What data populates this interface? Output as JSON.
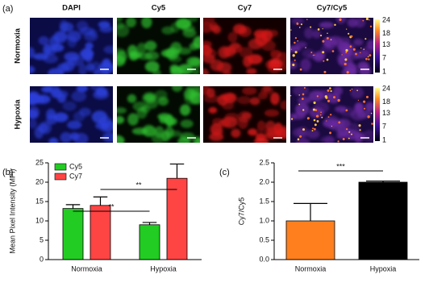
{
  "panel_labels": [
    "(a)",
    "(b)",
    "(c)"
  ],
  "imaging": {
    "columns": [
      "DAPI",
      "Cy5",
      "Cy7",
      "Cy7/Cy5"
    ],
    "rows": [
      {
        "label": "Normoxia",
        "colorbar_ticks": [
          24,
          18,
          13,
          7,
          1
        ]
      },
      {
        "label": "Hypoxia",
        "colorbar_ticks": [
          24,
          18,
          13,
          7,
          1
        ]
      }
    ]
  },
  "chart_data": [
    {
      "type": "bar",
      "y_label": "Mean Pixel Intensity (MPI)",
      "categories": [
        "Normoxia",
        "Hypoxia"
      ],
      "series": [
        {
          "name": "Cy5",
          "color": "#22cc22",
          "values": [
            13.2,
            9
          ],
          "errors": [
            1,
            0.6
          ]
        },
        {
          "name": "Cy7",
          "color": "#ff4444",
          "values": [
            14,
            21
          ],
          "errors": [
            2.2,
            3.7
          ]
        }
      ],
      "ylim": [
        0,
        25
      ],
      "yticks": [
        0,
        5,
        10,
        15,
        20,
        25
      ],
      "legend": "upper left",
      "annotations": [
        "**",
        "**"
      ]
    },
    {
      "type": "bar",
      "y_label": "Cy7/Cy5",
      "categories": [
        "Normoxia",
        "Hypoxia"
      ],
      "values": [
        1,
        2
      ],
      "errors": [
        0.45,
        0.03
      ],
      "colors": [
        "#ff7f1e",
        "#000000"
      ],
      "ylim": [
        0,
        2.5
      ],
      "yticks": [
        {
          "value": 0,
          "label": "0.0"
        },
        {
          "value": 0.5,
          "label": "0.5"
        },
        {
          "value": 1,
          "label": "1.0"
        },
        {
          "value": 1.5,
          "label": "1.5"
        },
        {
          "value": 2,
          "label": "2.0"
        },
        {
          "value": 2.5,
          "label": "2.5"
        }
      ],
      "annotations": [
        "***"
      ]
    }
  ]
}
